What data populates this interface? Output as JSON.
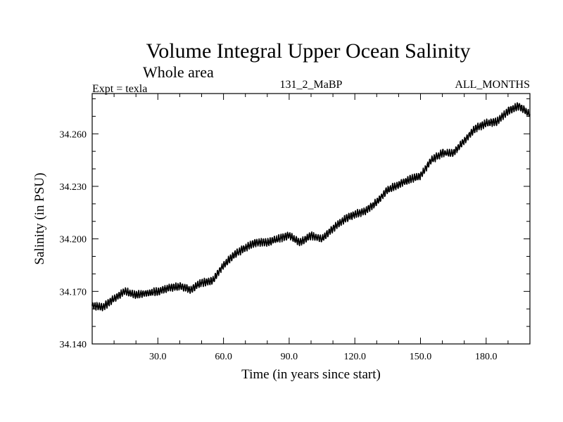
{
  "chart_data": {
    "type": "line",
    "title": "Volume Integral Upper Ocean Salinity",
    "subtitle": "Whole area",
    "left_label": "Expt = texla",
    "center_label": "131_2_MaBP",
    "right_label": "ALL_MONTHS",
    "xlabel": "Time (in years since start)",
    "ylabel": "Salinity (in PSU)",
    "xlim": [
      0,
      200
    ],
    "ylim": [
      34.14,
      34.283
    ],
    "x_ticks": [
      30,
      60,
      90,
      120,
      150,
      180
    ],
    "x_tick_labels": [
      "30.0",
      "60.0",
      "90.0",
      "120.0",
      "150.0",
      "180.0"
    ],
    "y_ticks": [
      34.14,
      34.17,
      34.2,
      34.23,
      34.26
    ],
    "y_tick_labels": [
      "34.140",
      "34.170",
      "34.200",
      "34.230",
      "34.260"
    ],
    "grid": false,
    "series": [
      {
        "name": "Salinity",
        "color": "#000000",
        "x": [
          0,
          5,
          10,
          15,
          20,
          25,
          30,
          35,
          40,
          45,
          50,
          55,
          60,
          65,
          70,
          75,
          80,
          85,
          90,
          95,
          100,
          105,
          110,
          115,
          120,
          125,
          130,
          135,
          140,
          145,
          150,
          155,
          160,
          165,
          170,
          175,
          180,
          185,
          190,
          195,
          200
        ],
        "values": [
          34.162,
          34.161,
          34.166,
          34.17,
          34.168,
          34.169,
          34.17,
          34.172,
          34.173,
          34.171,
          34.175,
          34.176,
          34.185,
          34.191,
          34.195,
          34.198,
          34.198,
          34.2,
          34.202,
          34.198,
          34.202,
          34.2,
          34.206,
          34.211,
          34.214,
          34.216,
          34.221,
          34.228,
          34.231,
          34.234,
          34.236,
          34.245,
          34.249,
          34.249,
          34.256,
          34.263,
          34.266,
          34.267,
          34.273,
          34.276,
          34.271
        ]
      }
    ]
  }
}
